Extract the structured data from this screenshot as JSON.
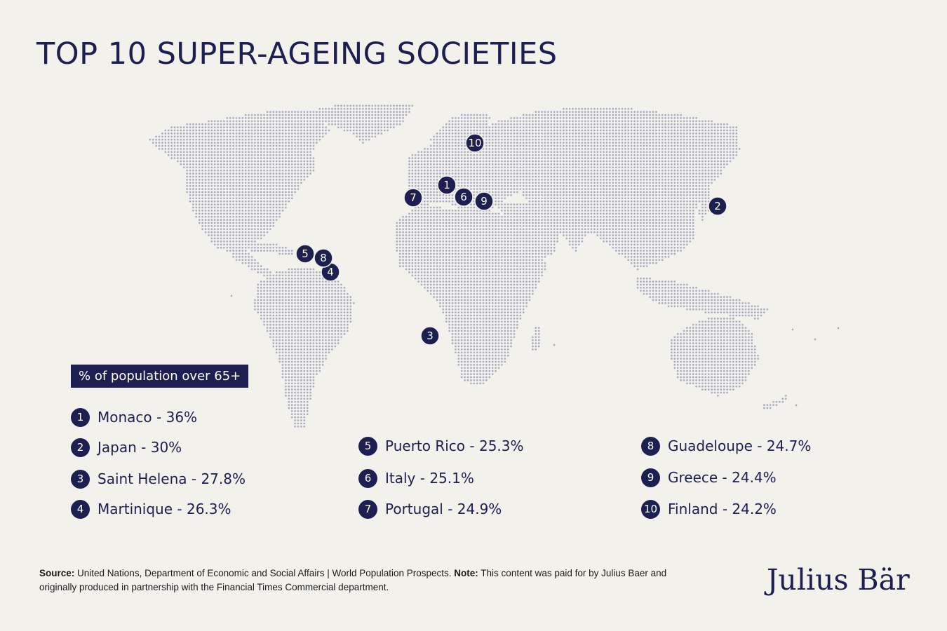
{
  "title": "TOP 10 SUPER-AGEING SOCIETIES",
  "legend_title": "% of population over 65+",
  "colors": {
    "navy": "#1c1f4f",
    "dot": "#a9abc2",
    "background": "#f3f1ec"
  },
  "items": [
    {
      "rank": "1",
      "label": "Monaco - 36%"
    },
    {
      "rank": "2",
      "label": "Japan - 30%"
    },
    {
      "rank": "3",
      "label": "Saint Helena - 27.8%"
    },
    {
      "rank": "4",
      "label": "Martinique - 26.3%"
    },
    {
      "rank": "5",
      "label": "Puerto Rico - 25.3%"
    },
    {
      "rank": "6",
      "label": "Italy - 25.1%"
    },
    {
      "rank": "7",
      "label": "Portugal - 24.9%"
    },
    {
      "rank": "8",
      "label": "Guadeloupe - 24.7%"
    },
    {
      "rank": "9",
      "label": "Greece - 24.4%"
    },
    {
      "rank": "10",
      "label": "Finland - 24.2%"
    }
  ],
  "source": {
    "label": "Source:",
    "text": " United Nations, Department of Economic and Social Affairs | World Population Prospects. ",
    "note_label": "Note:",
    "note_text": " This content was paid for by Julius Baer and originally produced in partnership with the Financial Times Commercial department."
  },
  "logo": "Julius Bär"
}
